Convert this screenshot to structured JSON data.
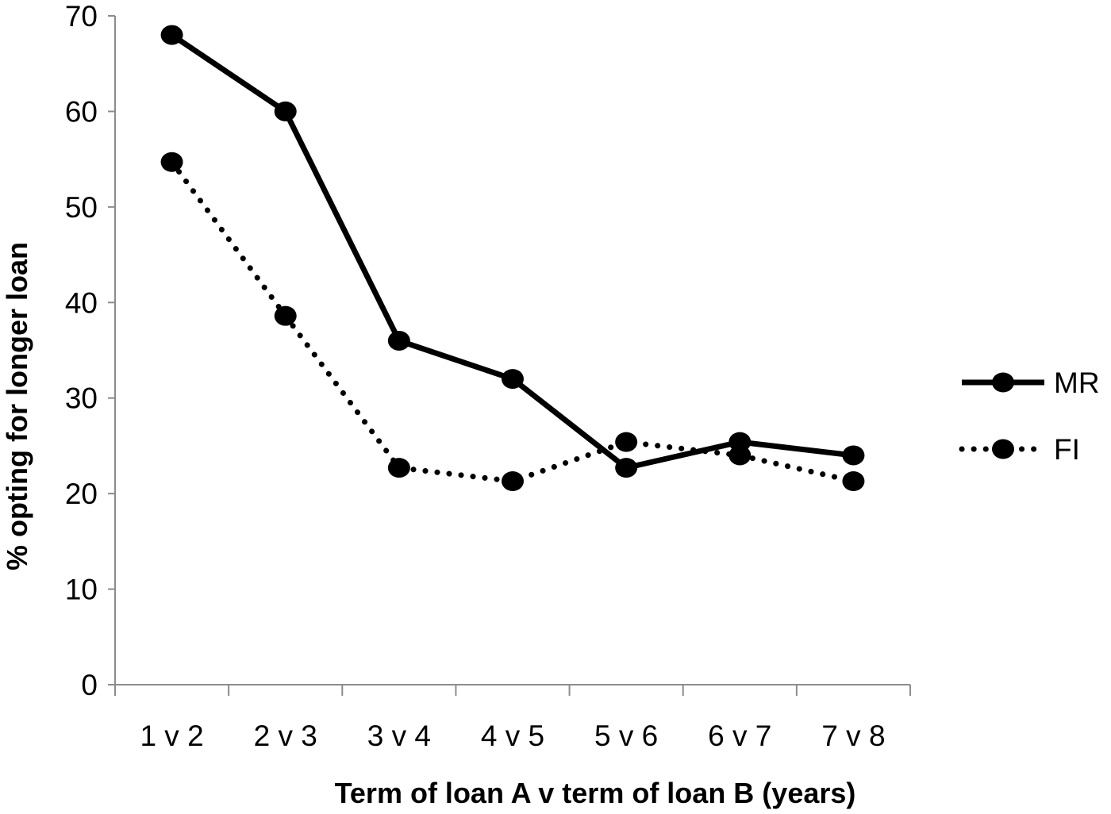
{
  "chart_data": {
    "type": "line",
    "categories": [
      "1 v 2",
      "2 v 3",
      "3 v 4",
      "4 v 5",
      "5 v 6",
      "6 v 7",
      "7 v 8"
    ],
    "series": [
      {
        "name": "MR",
        "style": "solid",
        "values": [
          68,
          60,
          36,
          32,
          22.7,
          25.4,
          24
        ],
        "color": "#000000"
      },
      {
        "name": "FI",
        "style": "dotted",
        "values": [
          54.7,
          38.6,
          22.7,
          21.3,
          25.4,
          24,
          21.3
        ],
        "color": "#000000"
      }
    ],
    "title": "",
    "xlabel": "Term of loan A v term of loan B (years)",
    "ylabel": "% opting for longer loan",
    "ylim": [
      0,
      70
    ],
    "yticks": [
      "0",
      "10",
      "20",
      "30",
      "40",
      "50",
      "60",
      "70"
    ],
    "grid": false,
    "legend_position": "right"
  }
}
